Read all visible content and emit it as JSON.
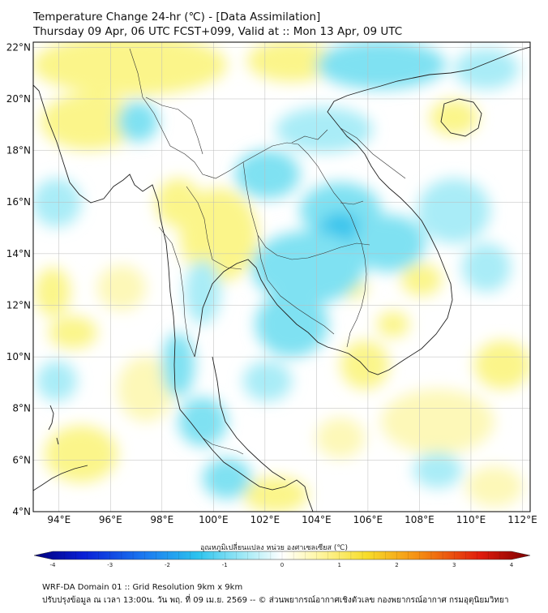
{
  "header": {
    "title": "Temperature Change 24-hr (℃) - [Data Assimilation]",
    "subtitle": "Thursday 09 Apr, 06 UTC FCST+099, Valid at :: Mon 13 Apr, 09 UTC"
  },
  "map": {
    "lon_range": [
      93,
      112.3
    ],
    "lat_range": [
      4,
      22.2
    ],
    "lat_labels": [
      "4°N",
      "6°N",
      "8°N",
      "10°N",
      "12°N",
      "14°N",
      "16°N",
      "18°N",
      "20°N",
      "22°N"
    ],
    "lat_values": [
      4,
      6,
      8,
      10,
      12,
      14,
      16,
      18,
      20,
      22
    ],
    "lon_labels": [
      "94°E",
      "96°E",
      "98°E",
      "100°E",
      "102°E",
      "104°E",
      "106°E",
      "108°E",
      "110°E",
      "112°E"
    ],
    "lon_values": [
      94,
      96,
      98,
      100,
      102,
      104,
      106,
      108,
      110,
      112
    ],
    "colors": {
      "warm": "#fbf58a",
      "cool": "#7fe1f2",
      "strong_cool": "#38c4ec",
      "neutral": "#ffffff"
    }
  },
  "colorbar": {
    "title": "อุณหภูมิเปลี่ยนแปลง หน่วย องศาเซลเซียส (℃)",
    "ticks": [
      "-4",
      "-3",
      "-2",
      "-1",
      "0",
      "1",
      "2",
      "3",
      "4"
    ],
    "tick_values": [
      -4,
      -3,
      -2,
      -1,
      0,
      1,
      2,
      3,
      4
    ]
  },
  "footer": {
    "line1": "WRF-DA Domain 01 :: Grid Resolution 9km x 9km",
    "line2": "ปรับปรุงข้อมูล ณ เวลา 13:00น. วัน พฤ. ที่ 09 เม.ย. 2569 -- © ส่วนพยากรณ์อากาศเชิงตัวเลข กองพยากรณ์อากาศ กรมอุตุนิยมวิทยา"
  }
}
